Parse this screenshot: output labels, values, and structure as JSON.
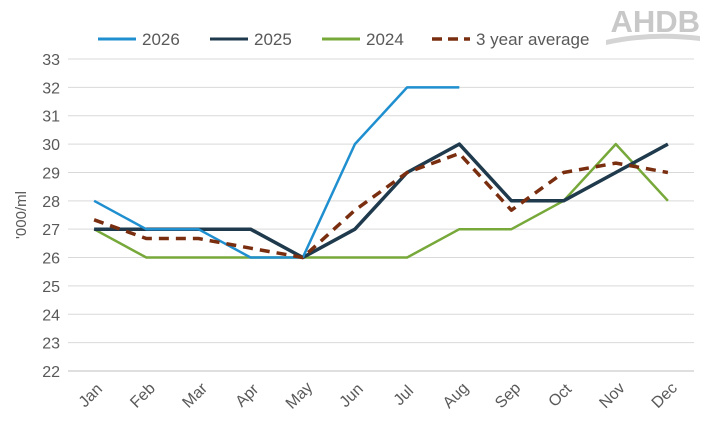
{
  "brand": {
    "logo_text": "AHDB",
    "logo_color": "#c8c8c8"
  },
  "chart_data": {
    "type": "line",
    "title": "",
    "xlabel": "",
    "ylabel": "'000/ml",
    "ylim": [
      22,
      33
    ],
    "yticks": [
      22,
      23,
      24,
      25,
      26,
      27,
      28,
      29,
      30,
      31,
      32,
      33
    ],
    "grid": true,
    "legend_position": "top",
    "categories": [
      "Jan",
      "Feb",
      "Mar",
      "Apr",
      "May",
      "Jun",
      "Jul",
      "Aug",
      "Sep",
      "Oct",
      "Nov",
      "Dec"
    ],
    "series": [
      {
        "name": "2026",
        "color": "#1f8fcf",
        "dash": "solid",
        "values": [
          28,
          27,
          27,
          26,
          26,
          30,
          32,
          32,
          null,
          null,
          null,
          null
        ]
      },
      {
        "name": "2025",
        "color": "#1e3a4c",
        "dash": "solid",
        "values": [
          27,
          27,
          27,
          27,
          26,
          27,
          29,
          30,
          28,
          28,
          29,
          30
        ]
      },
      {
        "name": "2024",
        "color": "#77a83a",
        "dash": "solid",
        "values": [
          27,
          26,
          26,
          26,
          26,
          26,
          26,
          27,
          27,
          28,
          30,
          28
        ]
      },
      {
        "name": "3 year average",
        "color": "#7a2e10",
        "dash": "dashed",
        "values": [
          27.33,
          26.67,
          26.67,
          26.33,
          26,
          27.67,
          29,
          29.67,
          27.67,
          29,
          29.33,
          29
        ]
      }
    ]
  }
}
